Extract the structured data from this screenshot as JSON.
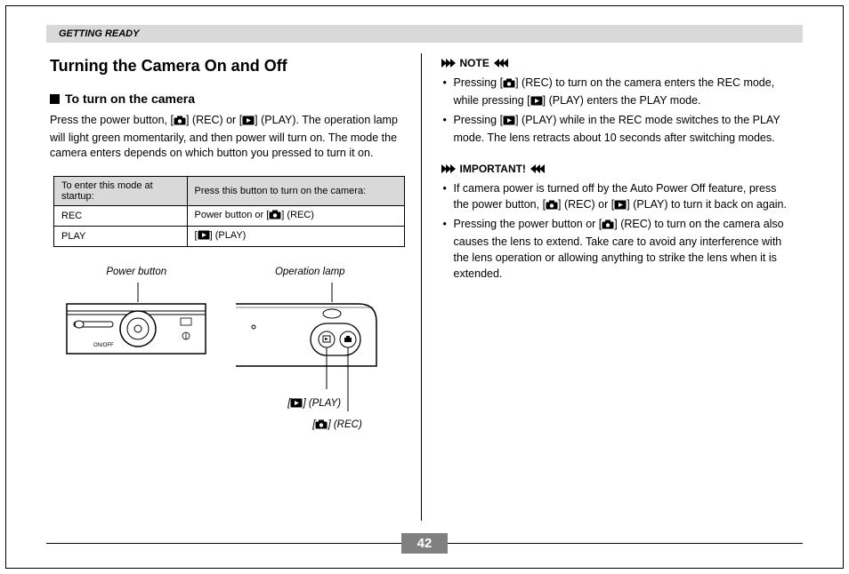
{
  "header": {
    "section": "GETTING READY"
  },
  "left": {
    "title": "Turning the Camera On and Off",
    "subhead": "To turn on the camera",
    "intro_pre": "Press the power button, [",
    "intro_mid1": "] (REC) or [",
    "intro_mid2": "] (PLAY). The operation lamp will light green momentarily, and then power will turn on. The mode the camera enters depends on which button you pressed to turn it on.",
    "table": {
      "header_left": "To enter this mode at startup:",
      "header_right": "Press this button to turn on the camera:",
      "rows": [
        {
          "mode": "REC",
          "btn_pre": "Power button or [",
          "btn_post": "] (REC)",
          "icon": "camera"
        },
        {
          "mode": "PLAY",
          "btn_pre": "[",
          "btn_post": "] (PLAY)",
          "icon": "play"
        }
      ]
    },
    "diagram": {
      "power_label": "Power button",
      "op_label": "Operation lamp",
      "onoff": "ON/OFF",
      "play_label_pre": "[",
      "play_label_post": "] (PLAY)",
      "rec_label_pre": "[",
      "rec_label_post": "] (REC)"
    }
  },
  "right": {
    "note_title": "NOTE",
    "note_items": [
      {
        "segments": [
          {
            "t": "Pressing ["
          },
          {
            "icon": "camera"
          },
          {
            "t": "] (REC) to turn on the camera enters the REC mode, while pressing ["
          },
          {
            "icon": "play"
          },
          {
            "t": "] (PLAY) enters the PLAY mode."
          }
        ]
      },
      {
        "segments": [
          {
            "t": "Pressing ["
          },
          {
            "icon": "play"
          },
          {
            "t": "] (PLAY) while in the REC mode switches to the PLAY mode. The lens retracts about 10 seconds after switching modes."
          }
        ]
      }
    ],
    "important_title": "IMPORTANT!",
    "important_items": [
      {
        "segments": [
          {
            "t": "If camera power is turned off by the Auto Power Off feature, press the power button, ["
          },
          {
            "icon": "camera"
          },
          {
            "t": "] (REC) or ["
          },
          {
            "icon": "play"
          },
          {
            "t": "] (PLAY) to turn it back on again."
          }
        ]
      },
      {
        "segments": [
          {
            "t": "Pressing the power button or ["
          },
          {
            "icon": "camera"
          },
          {
            "t": "] (REC) to turn on the camera also causes the lens to extend. Take care to avoid any interference with the lens operation or allowing anything to strike the lens when it is extended."
          }
        ]
      }
    ]
  },
  "page_number": "42",
  "colors": {
    "header_bg": "#d9d9d9",
    "page_num_bg": "#808080"
  }
}
